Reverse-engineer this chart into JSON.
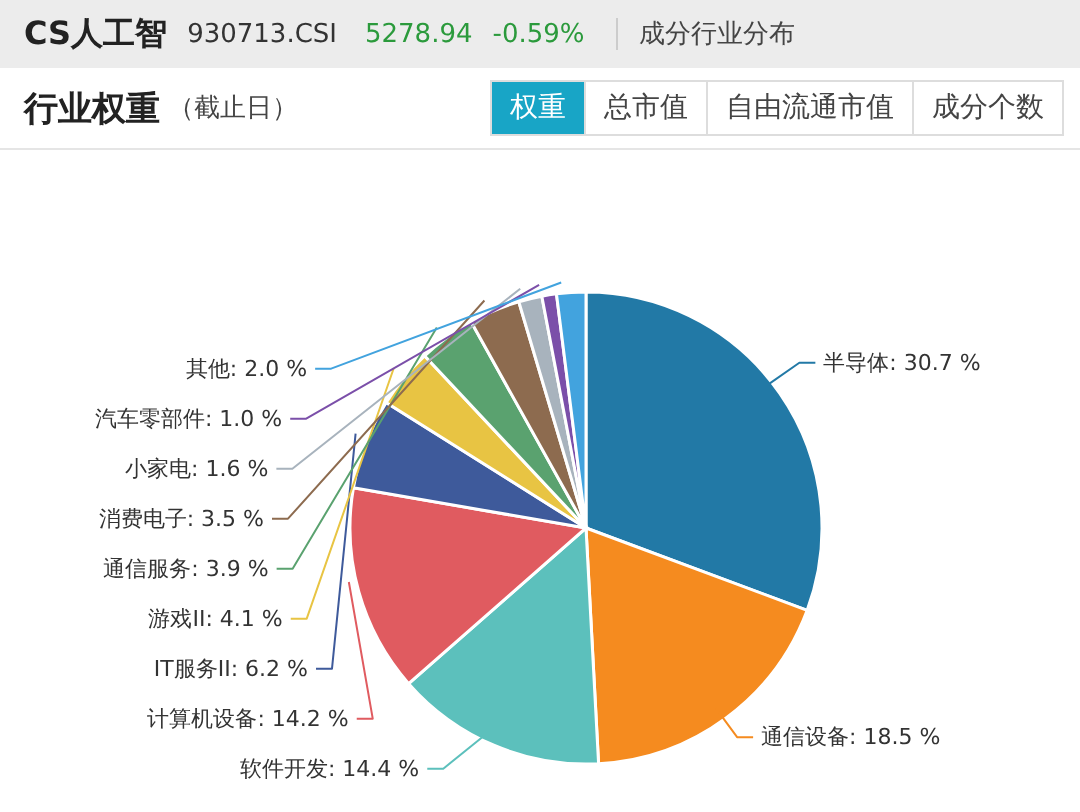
{
  "chart_data": {
    "type": "pie",
    "title": "行业权重",
    "subtitle": "（截止日）",
    "annotations": [
      "CS人工智",
      "930713.CSI",
      "5278.94",
      "-0.59%",
      "成分行业分布",
      "权重",
      "总市值",
      "自由流通市值",
      "成分个数"
    ],
    "categories": [
      "半导体",
      "通信设备",
      "软件开发",
      "计算机设备",
      "IT服务II",
      "游戏II",
      "通信服务",
      "消费电子",
      "小家电",
      "汽车零部件",
      "其他"
    ],
    "values": [
      30.7,
      18.5,
      14.4,
      14.2,
      6.2,
      4.1,
      3.9,
      3.5,
      1.6,
      1.0,
      2.0
    ],
    "value_labels": [
      "30.7 %",
      "18.5 %",
      "14.4 %",
      "14.2 %",
      "6.2 %",
      "4.1 %",
      "3.9 %",
      "3.5 %",
      "1.6 %",
      "1.0 %",
      "2.0 %"
    ],
    "colors": [
      "#2279a6",
      "#f58b1f",
      "#5cc0bc",
      "#e05b60",
      "#3e5a9b",
      "#e8c443",
      "#5aa26f",
      "#8d6b4f",
      "#a8b3bd",
      "#7b4fa9",
      "#42a3de"
    ]
  }
}
